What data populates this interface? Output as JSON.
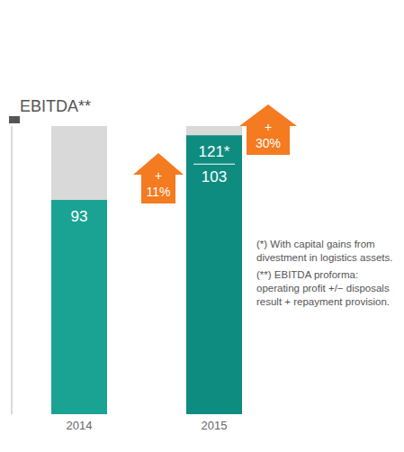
{
  "chart_data": {
    "type": "bar",
    "title": "EBITDA**",
    "categories": [
      "2014",
      "2015"
    ],
    "values": [
      93,
      121
    ],
    "value_labels": [
      "93",
      "121*"
    ],
    "values_without_capital_gains": [
      null,
      103
    ],
    "colors": [
      "#1aa392",
      "#0e8c7f"
    ],
    "ylim": [
      0,
      125
    ],
    "yticks": [],
    "tick_labels": "x",
    "data_labels": true,
    "annotations": [
      {
        "sign": "+",
        "text": "11%"
      },
      {
        "sign": "+",
        "text": "30%"
      }
    ],
    "footnotes": [
      "(*) With capital gains from divestment in logistics assets.",
      "(**) EBITDA proforma: operating profit +/− disposals result + repayment provision."
    ]
  }
}
